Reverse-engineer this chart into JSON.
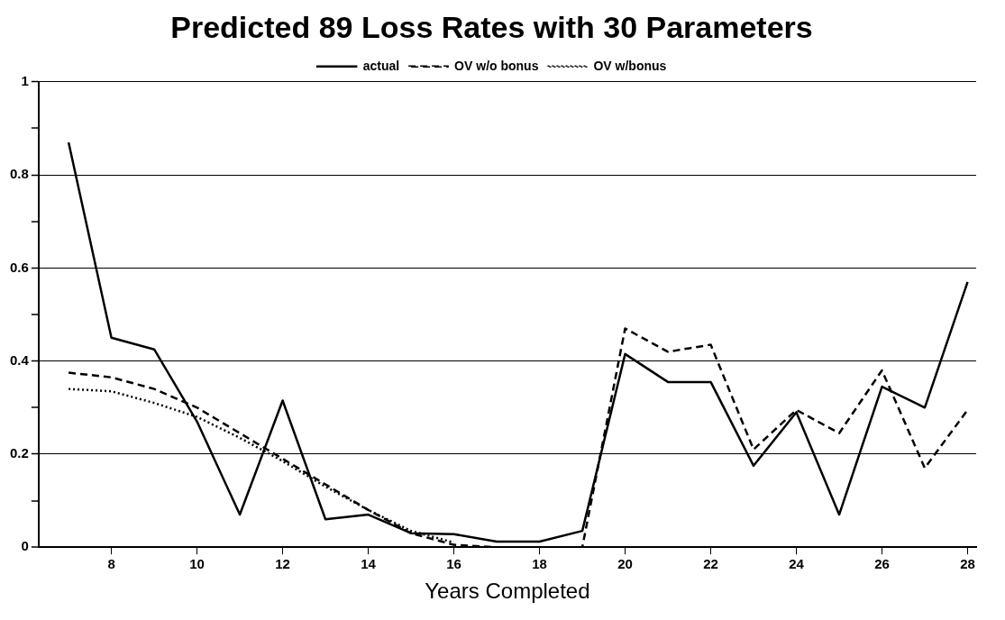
{
  "chart_data": {
    "type": "line",
    "title": "Predicted 89 Loss Rates with 30 Parameters",
    "xlabel": "Years Completed",
    "x": [
      7,
      8,
      9,
      10,
      11,
      12,
      13,
      14,
      15,
      16,
      17,
      18,
      19,
      20,
      21,
      22,
      23,
      24,
      25,
      26,
      27,
      28
    ],
    "series": [
      {
        "name": "actual",
        "color": "#000000",
        "line_style": "solid",
        "values": [
          0.87,
          0.45,
          0.425,
          0.27,
          0.07,
          0.315,
          0.06,
          0.07,
          0.03,
          0.028,
          0.012,
          0.012,
          0.035,
          0.415,
          0.355,
          0.355,
          0.175,
          0.29,
          0.07,
          0.345,
          0.3,
          0.57
        ]
      },
      {
        "name": "OV w/o bonus",
        "color": "#000000",
        "line_style": "dashed",
        "values": [
          0.375,
          0.365,
          0.34,
          0.3,
          0.245,
          0.19,
          0.135,
          0.08,
          0.03,
          0.005,
          0,
          0,
          0,
          0.47,
          0.42,
          0.435,
          0.21,
          0.295,
          0.245,
          0.38,
          0.17,
          0.295
        ]
      },
      {
        "name": "OV w/bonus",
        "color": "#000000",
        "line_style": "dotted",
        "values": [
          0.34,
          0.335,
          0.31,
          0.28,
          0.235,
          0.185,
          0.13,
          0.08,
          0.035,
          0.01,
          null,
          null,
          null,
          null,
          null,
          null,
          null,
          null,
          null,
          null,
          null,
          null
        ]
      }
    ],
    "xlim": [
      6.3,
      28.2
    ],
    "xticks": [
      8,
      10,
      12,
      14,
      16,
      18,
      20,
      22,
      24,
      26,
      28
    ],
    "ylim": [
      0,
      1
    ],
    "yticks": [
      0,
      {
        "value": 0.1,
        "label": null
      },
      0.2,
      {
        "value": 0.3,
        "label": null
      },
      0.4,
      {
        "value": 0.5,
        "label": null
      },
      0.6,
      {
        "value": 0.7,
        "label": null
      },
      0.8,
      {
        "value": 0.9,
        "label": null
      },
      1
    ],
    "grid": "y",
    "legend": "top",
    "marker": "none"
  }
}
